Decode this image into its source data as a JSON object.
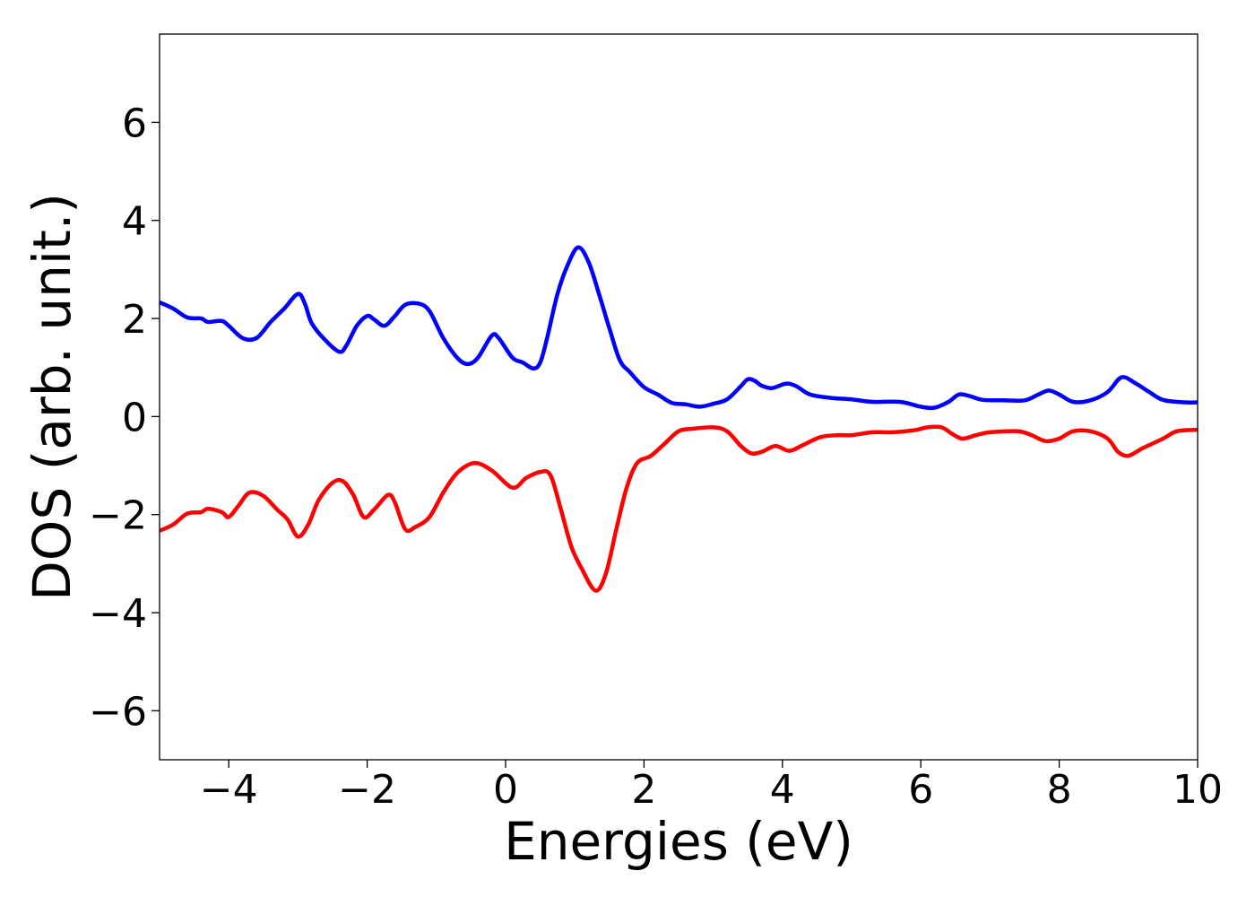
{
  "chart_data": {
    "type": "line",
    "xlabel": "Energies (eV)",
    "ylabel": "DOS (arb. unit.)",
    "xlim": [
      -5,
      10
    ],
    "ylim": [
      -7,
      7.8
    ],
    "x_ticks": [
      -4,
      -2,
      0,
      2,
      4,
      6,
      8,
      10
    ],
    "y_ticks": [
      -6,
      -4,
      -2,
      0,
      2,
      4,
      6
    ],
    "x_tick_labels": [
      "−4",
      "−2",
      "0",
      "2",
      "4",
      "6",
      "8",
      "10"
    ],
    "y_tick_labels": [
      "−6",
      "−4",
      "−2",
      "0",
      "2",
      "4",
      "6"
    ],
    "grid": false,
    "legend": "none",
    "series": [
      {
        "color": "#0000ff",
        "points": [
          [
            -5.0,
            2.33
          ],
          [
            -4.8,
            2.2
          ],
          [
            -4.6,
            2.02
          ],
          [
            -4.4,
            2.0
          ],
          [
            -4.3,
            1.93
          ],
          [
            -4.1,
            1.95
          ],
          [
            -4.0,
            1.85
          ],
          [
            -3.8,
            1.6
          ],
          [
            -3.6,
            1.6
          ],
          [
            -3.4,
            1.92
          ],
          [
            -3.2,
            2.2
          ],
          [
            -3.0,
            2.5
          ],
          [
            -2.9,
            2.3
          ],
          [
            -2.8,
            1.9
          ],
          [
            -2.6,
            1.55
          ],
          [
            -2.4,
            1.32
          ],
          [
            -2.3,
            1.45
          ],
          [
            -2.15,
            1.85
          ],
          [
            -2.0,
            2.05
          ],
          [
            -1.9,
            1.98
          ],
          [
            -1.75,
            1.85
          ],
          [
            -1.6,
            2.05
          ],
          [
            -1.45,
            2.28
          ],
          [
            -1.25,
            2.3
          ],
          [
            -1.1,
            2.15
          ],
          [
            -0.9,
            1.6
          ],
          [
            -0.7,
            1.2
          ],
          [
            -0.55,
            1.07
          ],
          [
            -0.4,
            1.2
          ],
          [
            -0.2,
            1.65
          ],
          [
            -0.1,
            1.6
          ],
          [
            0.1,
            1.2
          ],
          [
            0.25,
            1.1
          ],
          [
            0.4,
            0.98
          ],
          [
            0.5,
            1.1
          ],
          [
            0.6,
            1.6
          ],
          [
            0.75,
            2.5
          ],
          [
            0.9,
            3.1
          ],
          [
            1.05,
            3.45
          ],
          [
            1.2,
            3.15
          ],
          [
            1.35,
            2.5
          ],
          [
            1.5,
            1.8
          ],
          [
            1.65,
            1.15
          ],
          [
            1.8,
            0.9
          ],
          [
            2.0,
            0.6
          ],
          [
            2.2,
            0.45
          ],
          [
            2.4,
            0.28
          ],
          [
            2.6,
            0.25
          ],
          [
            2.8,
            0.2
          ],
          [
            3.0,
            0.26
          ],
          [
            3.2,
            0.35
          ],
          [
            3.4,
            0.62
          ],
          [
            3.5,
            0.76
          ],
          [
            3.6,
            0.73
          ],
          [
            3.7,
            0.63
          ],
          [
            3.85,
            0.58
          ],
          [
            4.05,
            0.67
          ],
          [
            4.2,
            0.62
          ],
          [
            4.4,
            0.45
          ],
          [
            4.7,
            0.38
          ],
          [
            5.0,
            0.35
          ],
          [
            5.3,
            0.3
          ],
          [
            5.7,
            0.3
          ],
          [
            6.0,
            0.2
          ],
          [
            6.2,
            0.18
          ],
          [
            6.4,
            0.3
          ],
          [
            6.55,
            0.45
          ],
          [
            6.7,
            0.42
          ],
          [
            6.9,
            0.34
          ],
          [
            7.2,
            0.33
          ],
          [
            7.5,
            0.33
          ],
          [
            7.7,
            0.45
          ],
          [
            7.85,
            0.53
          ],
          [
            8.0,
            0.45
          ],
          [
            8.2,
            0.3
          ],
          [
            8.45,
            0.33
          ],
          [
            8.7,
            0.5
          ],
          [
            8.9,
            0.8
          ],
          [
            9.1,
            0.68
          ],
          [
            9.3,
            0.5
          ],
          [
            9.5,
            0.34
          ],
          [
            9.8,
            0.29
          ],
          [
            10.0,
            0.29
          ]
        ]
      },
      {
        "color": "#ff0000",
        "points": [
          [
            -5.0,
            -2.33
          ],
          [
            -4.8,
            -2.2
          ],
          [
            -4.6,
            -1.98
          ],
          [
            -4.4,
            -1.95
          ],
          [
            -4.3,
            -1.88
          ],
          [
            -4.1,
            -1.95
          ],
          [
            -4.0,
            -2.05
          ],
          [
            -3.85,
            -1.8
          ],
          [
            -3.7,
            -1.55
          ],
          [
            -3.5,
            -1.62
          ],
          [
            -3.3,
            -1.9
          ],
          [
            -3.15,
            -2.1
          ],
          [
            -3.0,
            -2.45
          ],
          [
            -2.85,
            -2.2
          ],
          [
            -2.7,
            -1.7
          ],
          [
            -2.5,
            -1.35
          ],
          [
            -2.35,
            -1.32
          ],
          [
            -2.2,
            -1.6
          ],
          [
            -2.05,
            -2.05
          ],
          [
            -1.9,
            -1.9
          ],
          [
            -1.7,
            -1.6
          ],
          [
            -1.6,
            -1.75
          ],
          [
            -1.45,
            -2.3
          ],
          [
            -1.3,
            -2.25
          ],
          [
            -1.1,
            -2.05
          ],
          [
            -0.9,
            -1.55
          ],
          [
            -0.7,
            -1.15
          ],
          [
            -0.45,
            -0.95
          ],
          [
            -0.2,
            -1.1
          ],
          [
            0.1,
            -1.45
          ],
          [
            0.3,
            -1.25
          ],
          [
            0.5,
            -1.13
          ],
          [
            0.65,
            -1.2
          ],
          [
            0.8,
            -1.9
          ],
          [
            0.95,
            -2.65
          ],
          [
            1.1,
            -3.1
          ],
          [
            1.3,
            -3.55
          ],
          [
            1.45,
            -3.2
          ],
          [
            1.6,
            -2.3
          ],
          [
            1.75,
            -1.45
          ],
          [
            1.9,
            -0.95
          ],
          [
            2.1,
            -0.8
          ],
          [
            2.3,
            -0.55
          ],
          [
            2.5,
            -0.3
          ],
          [
            2.7,
            -0.25
          ],
          [
            3.0,
            -0.22
          ],
          [
            3.2,
            -0.3
          ],
          [
            3.4,
            -0.6
          ],
          [
            3.55,
            -0.75
          ],
          [
            3.7,
            -0.72
          ],
          [
            3.9,
            -0.6
          ],
          [
            4.1,
            -0.7
          ],
          [
            4.3,
            -0.58
          ],
          [
            4.55,
            -0.42
          ],
          [
            4.8,
            -0.38
          ],
          [
            5.0,
            -0.38
          ],
          [
            5.3,
            -0.32
          ],
          [
            5.6,
            -0.32
          ],
          [
            5.9,
            -0.28
          ],
          [
            6.1,
            -0.22
          ],
          [
            6.3,
            -0.22
          ],
          [
            6.45,
            -0.35
          ],
          [
            6.6,
            -0.45
          ],
          [
            6.8,
            -0.38
          ],
          [
            7.0,
            -0.32
          ],
          [
            7.4,
            -0.3
          ],
          [
            7.6,
            -0.38
          ],
          [
            7.8,
            -0.5
          ],
          [
            8.0,
            -0.45
          ],
          [
            8.2,
            -0.3
          ],
          [
            8.45,
            -0.3
          ],
          [
            8.7,
            -0.45
          ],
          [
            8.85,
            -0.72
          ],
          [
            9.0,
            -0.8
          ],
          [
            9.2,
            -0.65
          ],
          [
            9.5,
            -0.45
          ],
          [
            9.7,
            -0.3
          ],
          [
            10.0,
            -0.27
          ]
        ]
      }
    ]
  }
}
